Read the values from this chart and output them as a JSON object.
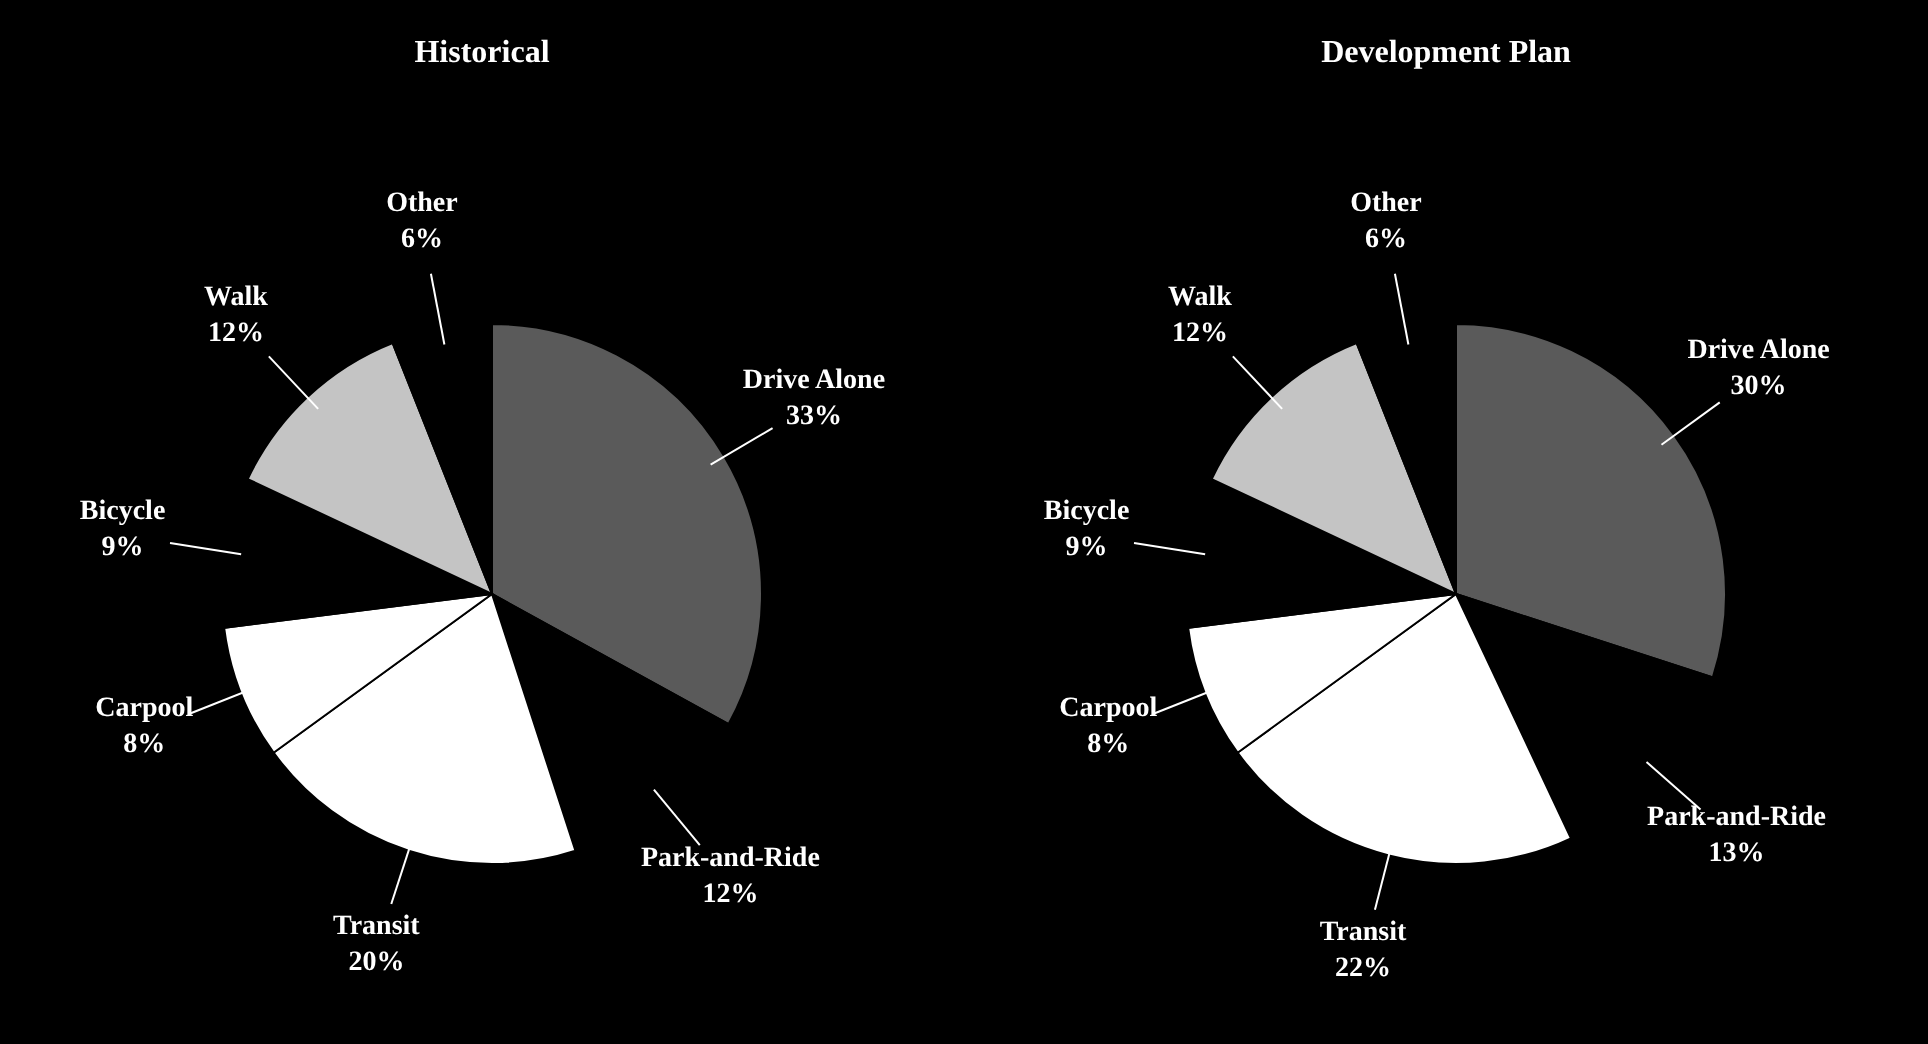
{
  "chart_data": [
    {
      "type": "pie",
      "title": "Historical",
      "categories": [
        "Drive Alone",
        "Park-and-Ride",
        "Transit",
        "Carpool",
        "Bicycle",
        "Walk",
        "Other"
      ],
      "values": [
        33,
        12,
        20,
        8,
        9,
        12,
        6
      ],
      "value_labels": [
        "33%",
        "12%",
        "20%",
        "8%",
        "9%",
        "12%",
        "6%"
      ],
      "colors": [
        "#5a5a5a",
        "#000000",
        "#ffffff",
        "#ffffff",
        "#000000",
        "#c4c4c4",
        "#000000"
      ]
    },
    {
      "type": "pie",
      "title": "Development Plan",
      "categories": [
        "Drive Alone",
        "Park-and-Ride",
        "Transit",
        "Carpool",
        "Bicycle",
        "Walk",
        "Other"
      ],
      "values": [
        30,
        13,
        22,
        8,
        9,
        12,
        6
      ],
      "value_labels": [
        "30%",
        "13%",
        "22%",
        "8%",
        "9%",
        "12%",
        "6%"
      ],
      "colors": [
        "#5a5a5a",
        "#000000",
        "#ffffff",
        "#ffffff",
        "#000000",
        "#c4c4c4",
        "#000000"
      ]
    }
  ]
}
